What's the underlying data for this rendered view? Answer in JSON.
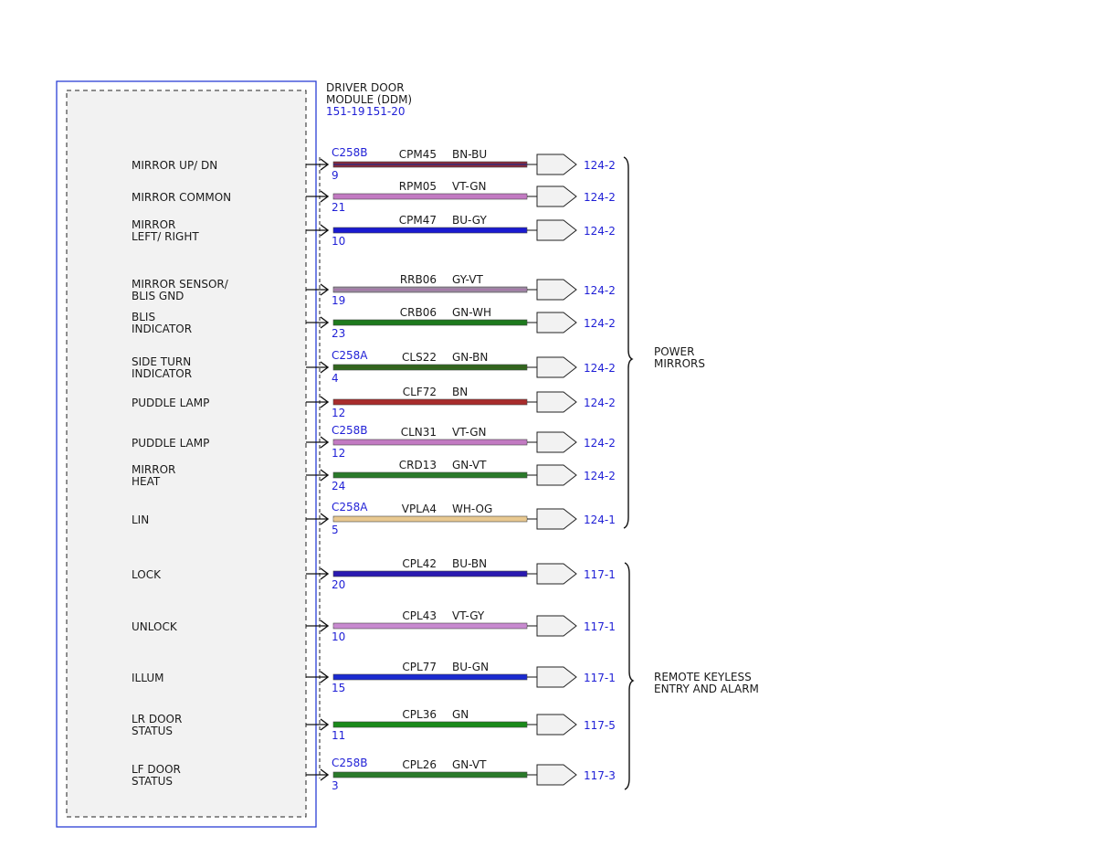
{
  "module": {
    "name_line1": "DRIVER DOOR",
    "name_line2": "MODULE (DDM)",
    "ref_a": "151-19",
    "ref_b": "151-20"
  },
  "circuits": [
    {
      "label": [
        "MIRROR UP/ DN"
      ],
      "connector": "C258B",
      "pin": "9",
      "circuit": "CPM45",
      "color": "BN-BU",
      "c1": "#8a2b3a",
      "c2": "#1a2a8a",
      "ref": "124-2"
    },
    {
      "label": [
        "MIRROR COMMON"
      ],
      "connector": "",
      "pin": "21",
      "circuit": "RPM05",
      "color": "VT-GN",
      "c1": "#c27ac2",
      "c2": "#c27ac2",
      "ref": "124-2"
    },
    {
      "label": [
        "MIRROR",
        "LEFT/ RIGHT"
      ],
      "connector": "",
      "pin": "10",
      "circuit": "CPM47",
      "color": "BU-GY",
      "c1": "#1a1ad0",
      "c2": "#1a1ad0",
      "ref": "124-2"
    },
    {
      "label": [
        "MIRROR SENSOR/",
        "BLIS GND"
      ],
      "connector": "",
      "pin": "19",
      "circuit": "RRB06",
      "color": "GY-VT",
      "c1": "#9a8aa0",
      "c2": "#b070b0",
      "ref": "124-2"
    },
    {
      "label": [
        "BLIS",
        "INDICATOR"
      ],
      "connector": "",
      "pin": "23",
      "circuit": "CRB06",
      "color": "GN-WH",
      "c1": "#1e7a1e",
      "c2": "#1e7a1e",
      "ref": "124-2"
    },
    {
      "label": [
        "SIDE TURN",
        "INDICATOR"
      ],
      "connector": "C258A",
      "pin": "4",
      "circuit": "CLS22",
      "color": "GN-BN",
      "c1": "#2e6a1e",
      "c2": "#3c5a1e",
      "ref": "124-2"
    },
    {
      "label": [
        "PUDDLE LAMP"
      ],
      "connector": "",
      "pin": "12",
      "circuit": "CLF72",
      "color": "BN",
      "c1": "#a82c2c",
      "c2": "#a82c2c",
      "ref": "124-2"
    },
    {
      "label": [
        "PUDDLE LAMP"
      ],
      "connector": "C258B",
      "pin": "12",
      "circuit": "CLN31",
      "color": "VT-GN",
      "c1": "#c27ac2",
      "c2": "#c27ac2",
      "ref": "124-2"
    },
    {
      "label": [
        "MIRROR",
        "HEAT"
      ],
      "connector": "",
      "pin": "24",
      "circuit": "CRD13",
      "color": "GN-VT",
      "c1": "#2a7a2a",
      "c2": "#2a7a2a",
      "ref": "124-2"
    },
    {
      "label": [
        "LIN"
      ],
      "connector": "C258A",
      "pin": "5",
      "circuit": "VPLA4",
      "color": "WH-OG",
      "c1": "#e8c890",
      "c2": "#e8c890",
      "ref": "124-1"
    },
    {
      "label": [
        "LOCK"
      ],
      "connector": "",
      "pin": "20",
      "circuit": "CPL42",
      "color": "BU-BN",
      "c1": "#2a1ab0",
      "c2": "#2a1ab0",
      "ref": "117-1"
    },
    {
      "label": [
        "UNLOCK"
      ],
      "connector": "",
      "pin": "10",
      "circuit": "CPL43",
      "color": "VT-GY",
      "c1": "#c88ad0",
      "c2": "#c88ad0",
      "ref": "117-1"
    },
    {
      "label": [
        "ILLUM"
      ],
      "connector": "",
      "pin": "15",
      "circuit": "CPL77",
      "color": "BU-GN",
      "c1": "#1a2ad0",
      "c2": "#1a2ad0",
      "ref": "117-1"
    },
    {
      "label": [
        "LR DOOR",
        "STATUS"
      ],
      "connector": "",
      "pin": "11",
      "circuit": "CPL36",
      "color": "GN",
      "c1": "#1a8a1a",
      "c2": "#1a8a1a",
      "ref": "117-5"
    },
    {
      "label": [
        "LF DOOR",
        "STATUS"
      ],
      "connector": "C258B",
      "pin": "3",
      "circuit": "CPL26",
      "color": "GN-VT",
      "c1": "#2a7a2a",
      "c2": "#2a7a2a",
      "ref": "117-3"
    }
  ],
  "groups": [
    {
      "name_line1": "POWER",
      "name_line2": "MIRRORS"
    },
    {
      "name_line1": "REMOTE KEYLESS",
      "name_line2": "ENTRY AND ALARM"
    }
  ]
}
